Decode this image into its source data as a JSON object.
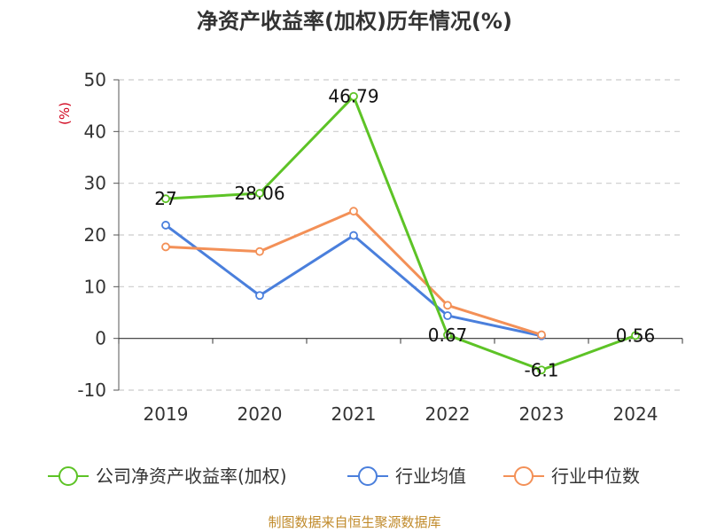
{
  "title": "净资产收益率(加权)历年情况(%)",
  "footer": "制图数据来自恒生聚源数据库",
  "chart_data": {
    "type": "line",
    "title": "净资产收益率(加权)历年情况(%)",
    "ylabel": "(%)",
    "xlabel": "",
    "categories": [
      "2019",
      "2020",
      "2021",
      "2022",
      "2023",
      "2024"
    ],
    "ylim": [
      -10,
      50
    ],
    "yticks": [
      -10,
      0,
      10,
      20,
      30,
      40,
      50
    ],
    "grid": true,
    "legend_position": "bottom",
    "series": [
      {
        "name": "公司净资产收益率(加权)",
        "color": "#5dc326",
        "values": [
          27,
          28.06,
          46.79,
          0.67,
          -6.1,
          0.56
        ],
        "labels": [
          "27",
          "28.06",
          "46.79",
          "0.67",
          "-6.1",
          "0.56"
        ]
      },
      {
        "name": "行业均值",
        "color": "#4a7fdc",
        "values": [
          21.9,
          8.3,
          19.9,
          4.4,
          0.5,
          null
        ]
      },
      {
        "name": "行业中位数",
        "color": "#f39057",
        "values": [
          17.7,
          16.8,
          24.6,
          6.4,
          0.7,
          null
        ]
      }
    ]
  }
}
